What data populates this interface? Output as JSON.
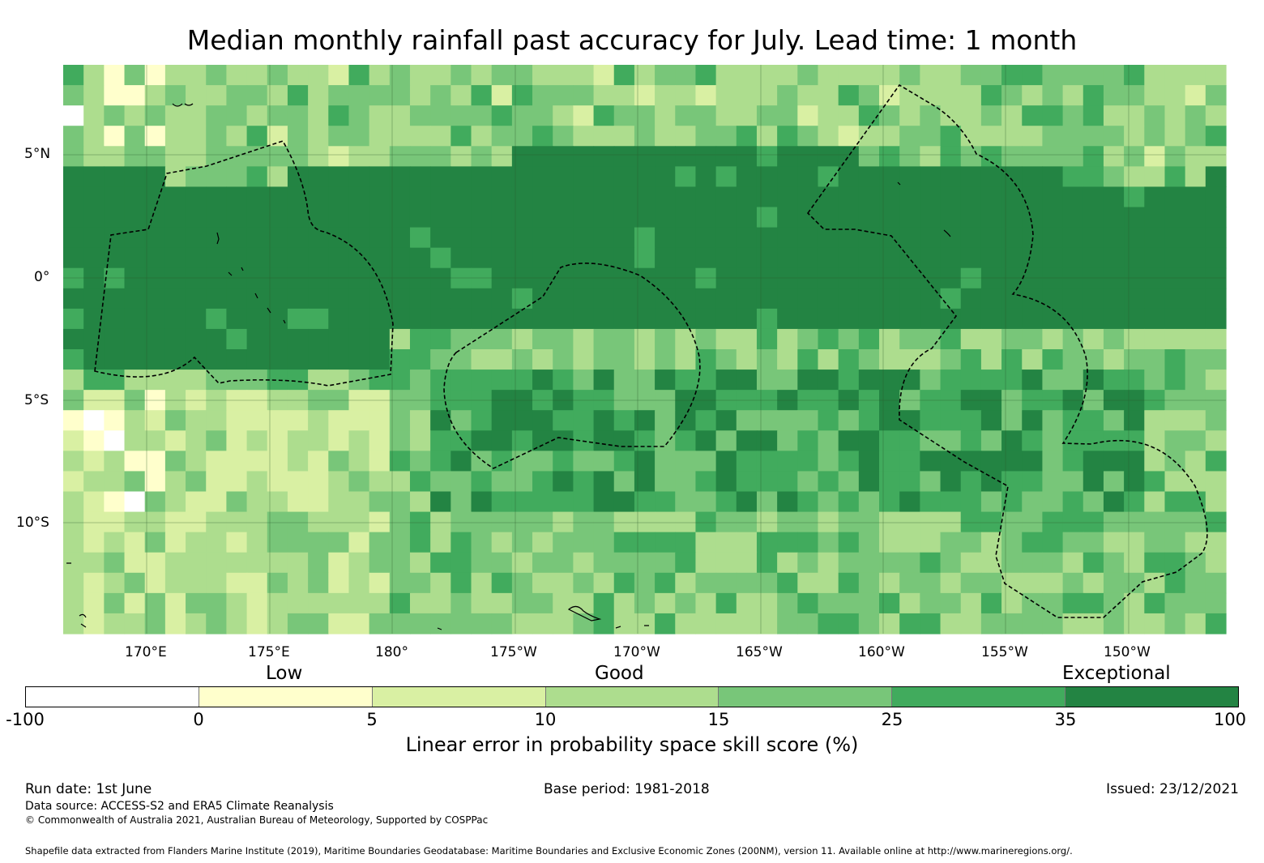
{
  "title": "Median monthly rainfall past accuracy for July. Lead time: 1 month",
  "map": {
    "latitude_labels": [
      "5°N",
      "0°",
      "5°S",
      "10°S"
    ],
    "longitude_labels": [
      "170°E",
      "175°E",
      "180°",
      "175°W",
      "170°W",
      "165°W",
      "160°W",
      "155°W",
      "150°W"
    ],
    "extent": {
      "lon_min": 166.6,
      "lon_max": 213.9,
      "lat_min": -14.5,
      "lat_max": 8.7
    },
    "grid_step_degrees": 0.83,
    "region_skill_bins": [
      {
        "region": "equatorial band",
        "bin": 6
      },
      {
        "region": "surrounding waters",
        "bin": 4
      }
    ]
  },
  "colorbar": {
    "categories": [
      "Low",
      "Good",
      "Exceptional"
    ],
    "ticks": [
      "-100",
      "0",
      "5",
      "10",
      "15",
      "25",
      "35",
      "100"
    ],
    "colors": [
      "#ffffff",
      "#ffffcc",
      "#d9f0a3",
      "#addd8e",
      "#78c679",
      "#41ab5d",
      "#238443"
    ],
    "label": "Linear error in probability space skill score (%)"
  },
  "footer": {
    "run_date": "Run date: 1st June",
    "base_period": "Base period: 1981-2018",
    "issued": "Issued: 23/12/2021",
    "data_source": "Data source: ACCESS-S2 and ERA5 Climate Reanalysis",
    "copyright": "© Commonwealth of Australia 2021, Australian Bureau of Meteorology, Supported by COSPPac",
    "shapefile": "Shapefile data extracted from Flanders Marine Institute (2019), Maritime Boundaries Geodatabase: Maritime Boundaries and Exclusive Economic Zones (200NM), version 11. Available online at http://www.marineregions.org/."
  }
}
